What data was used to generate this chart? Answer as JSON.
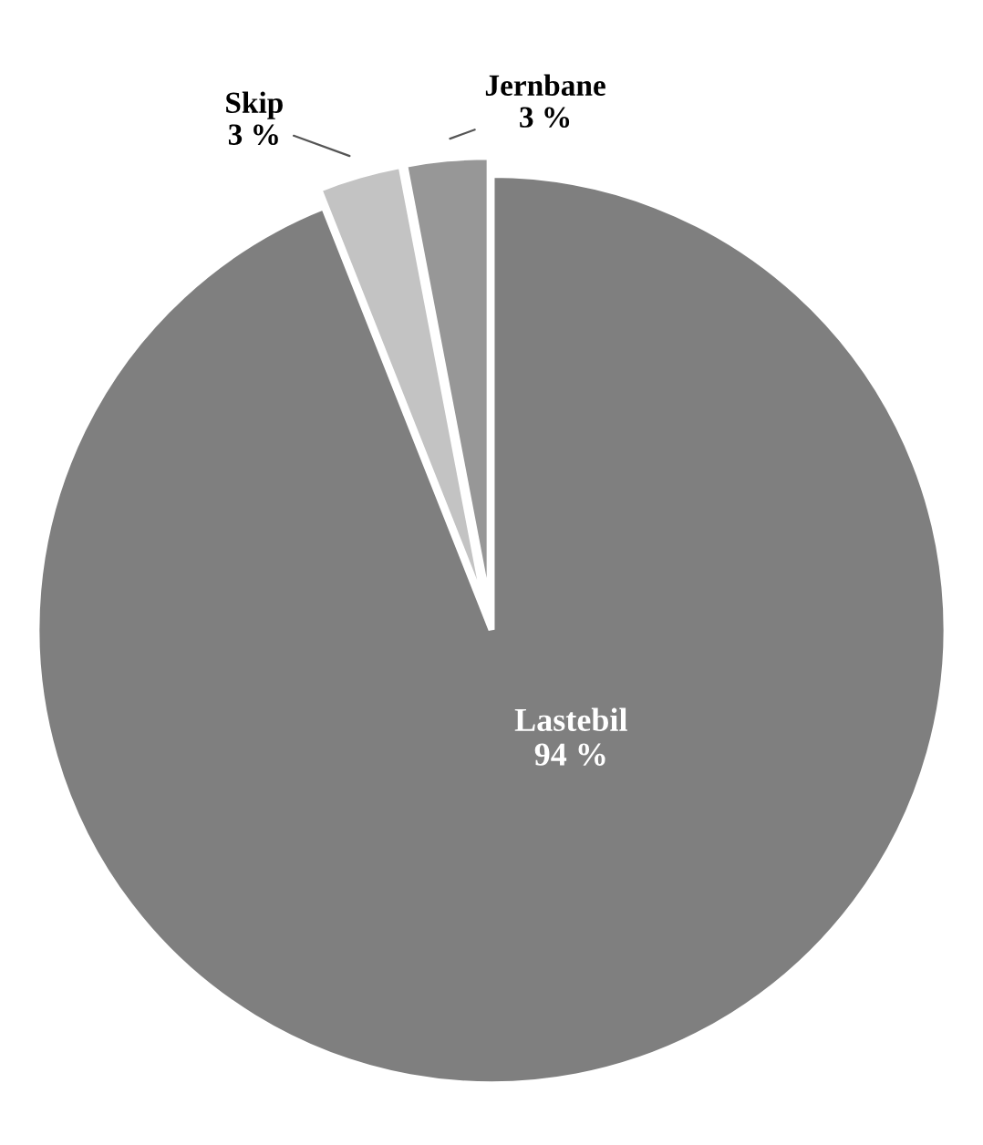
{
  "chart_data": {
    "type": "pie",
    "categories": [
      "Lastebil",
      "Skip",
      "Jernbane"
    ],
    "values": [
      94,
      3,
      3
    ],
    "value_labels": [
      "94 %",
      "3 %",
      "3 %"
    ],
    "colors": [
      "#7f7f7f",
      "#c3c3c3",
      "#979797"
    ],
    "legend": false
  }
}
